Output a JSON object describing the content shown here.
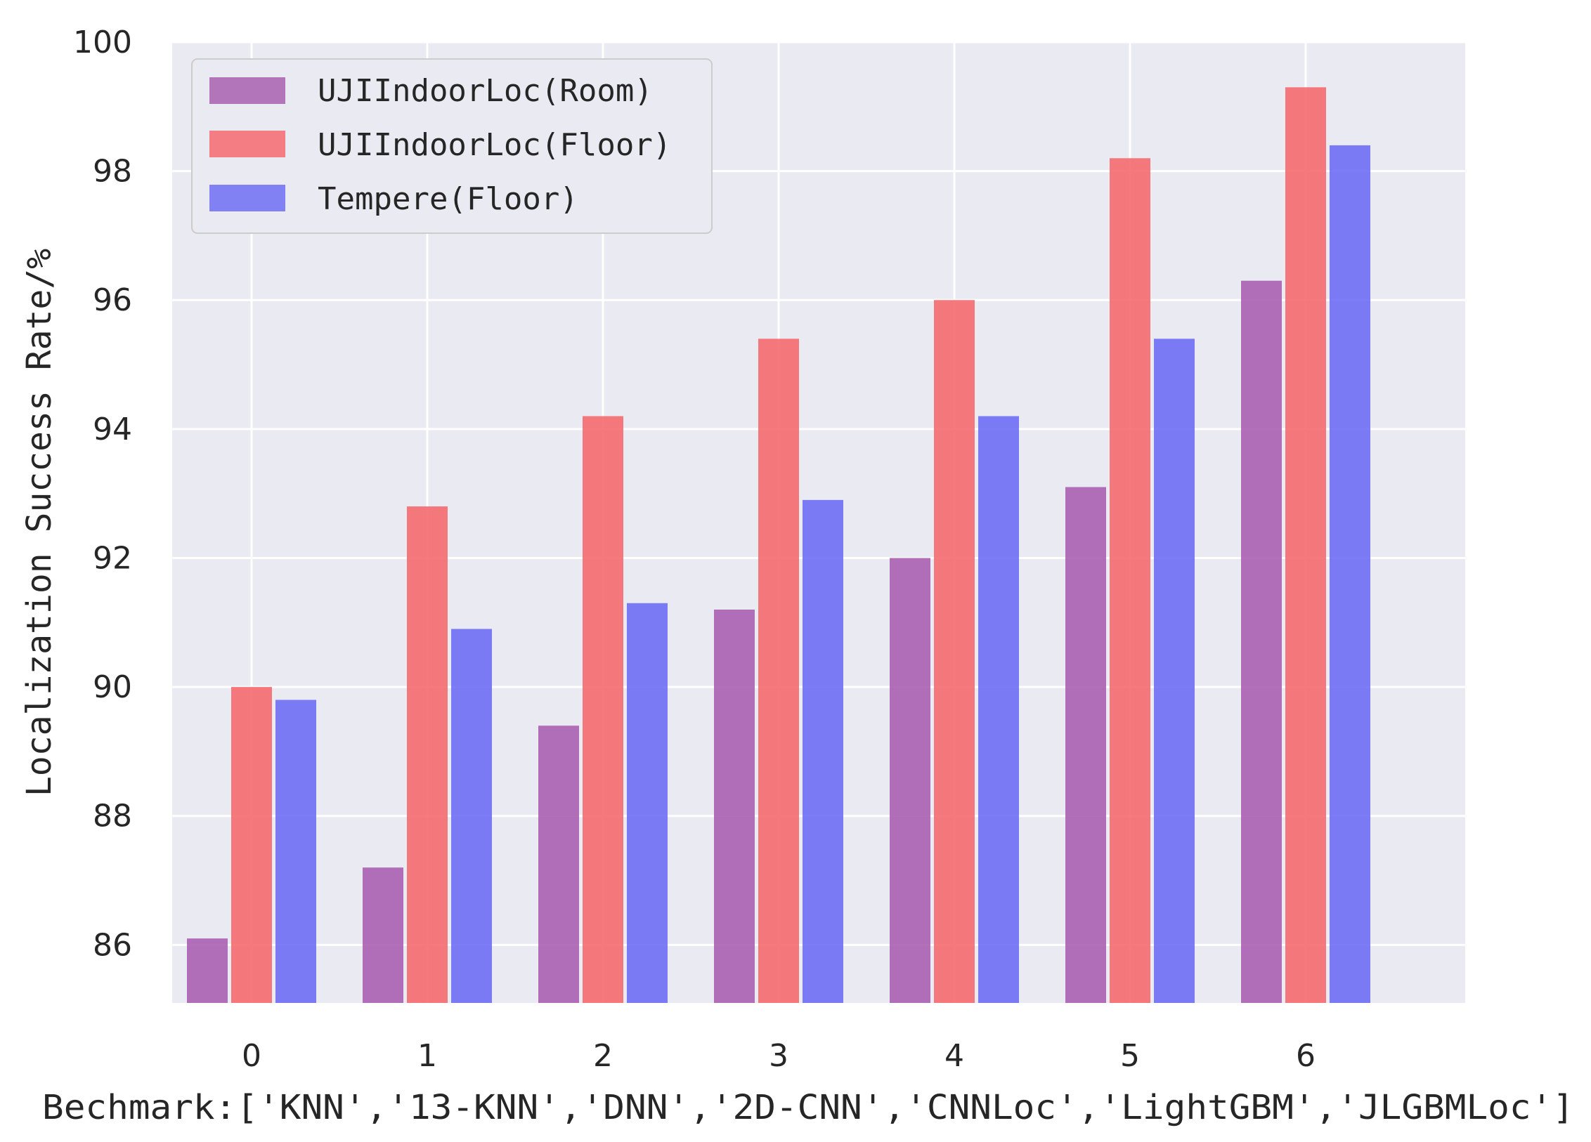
{
  "chart_data": {
    "type": "bar",
    "title": "",
    "xlabel": "Bechmark:['KNN','13-KNN','DNN','2D-CNN','CNNLoc','LightGBM','JLGBMLoc']",
    "ylabel": "Localization Success Rate/%",
    "categories": [
      "0",
      "1",
      "2",
      "3",
      "4",
      "5",
      "6"
    ],
    "ylim": [
      85.1,
      100
    ],
    "yticks": [
      86,
      88,
      90,
      92,
      94,
      96,
      98,
      100
    ],
    "grid": true,
    "legend_position": "top-left",
    "series": [
      {
        "name": "UJIIndoorLoc(Room)",
        "color": "#a860b0",
        "values": [
          86.1,
          87.2,
          89.4,
          91.2,
          92.0,
          93.1,
          96.3
        ]
      },
      {
        "name": "UJIIndoorLoc(Floor)",
        "color": "#f56a6e",
        "values": [
          90.0,
          92.8,
          94.2,
          95.4,
          96.0,
          98.2,
          99.3
        ]
      },
      {
        "name": "Tempere(Floor)",
        "color": "#6e6ef5",
        "values": [
          89.8,
          90.9,
          91.3,
          92.9,
          94.2,
          95.4,
          98.4
        ]
      }
    ]
  }
}
